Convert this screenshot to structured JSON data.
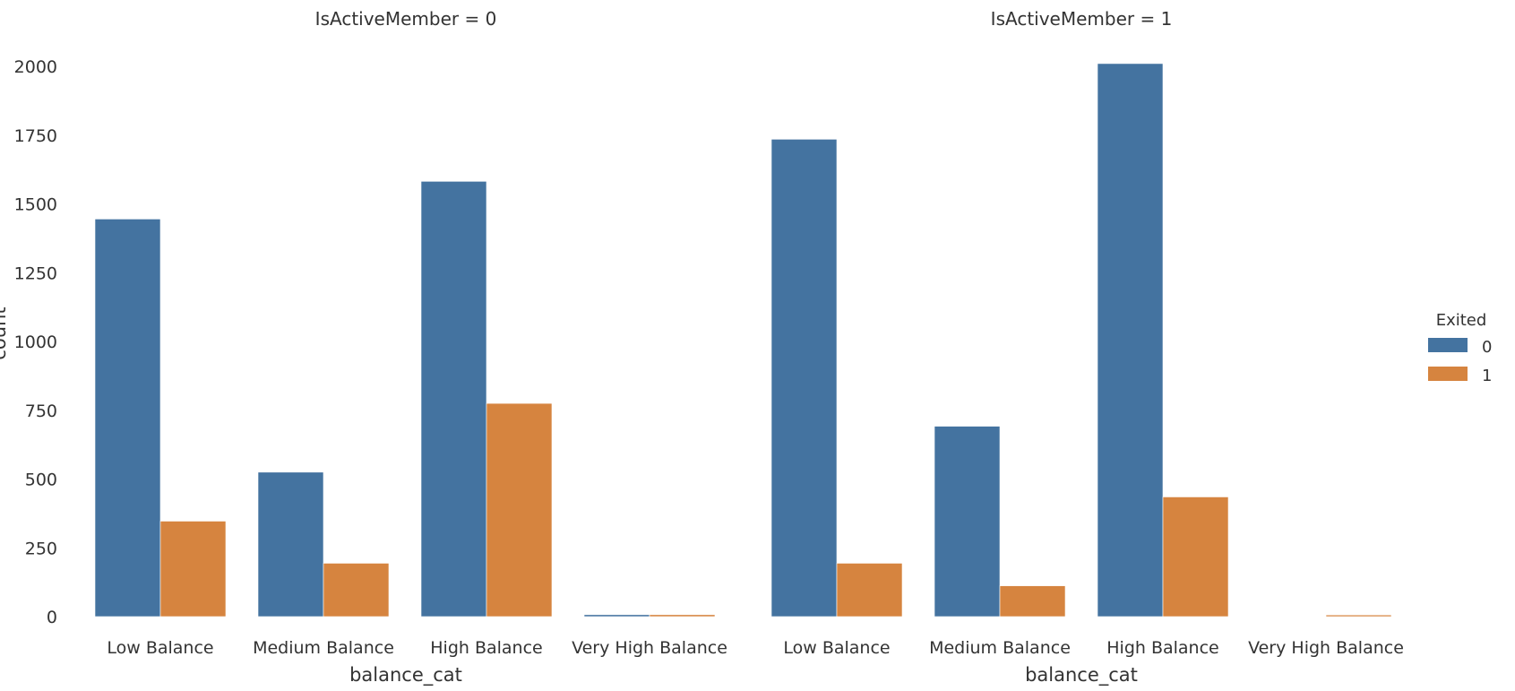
{
  "chart_data": {
    "type": "bar",
    "categories": [
      "Low Balance",
      "Medium Balance",
      "High Balance",
      "Very High Balance"
    ],
    "ylabel": "count",
    "ylim": [
      0,
      2000
    ],
    "yticks": [
      0,
      250,
      500,
      750,
      1000,
      1250,
      1500,
      1750,
      2000
    ],
    "grid": false,
    "legend": {
      "title": "Exited",
      "placement": "right",
      "entries": [
        "0",
        "1"
      ]
    },
    "colors": {
      "0": "#4473a0",
      "1": "#d6843f"
    },
    "panels": [
      {
        "title": "IsActiveMember = 0",
        "xlabel": "balance_cat",
        "series": [
          {
            "name": "0",
            "values": [
              1445,
              525,
              1582,
              7
            ]
          },
          {
            "name": "1",
            "values": [
              347,
              194,
              775,
              7
            ]
          }
        ]
      },
      {
        "title": "IsActiveMember = 1",
        "xlabel": "balance_cat",
        "series": [
          {
            "name": "0",
            "values": [
              1735,
              692,
              2010,
              0
            ]
          },
          {
            "name": "1",
            "values": [
              194,
              112,
              435,
              6
            ]
          }
        ]
      }
    ]
  }
}
